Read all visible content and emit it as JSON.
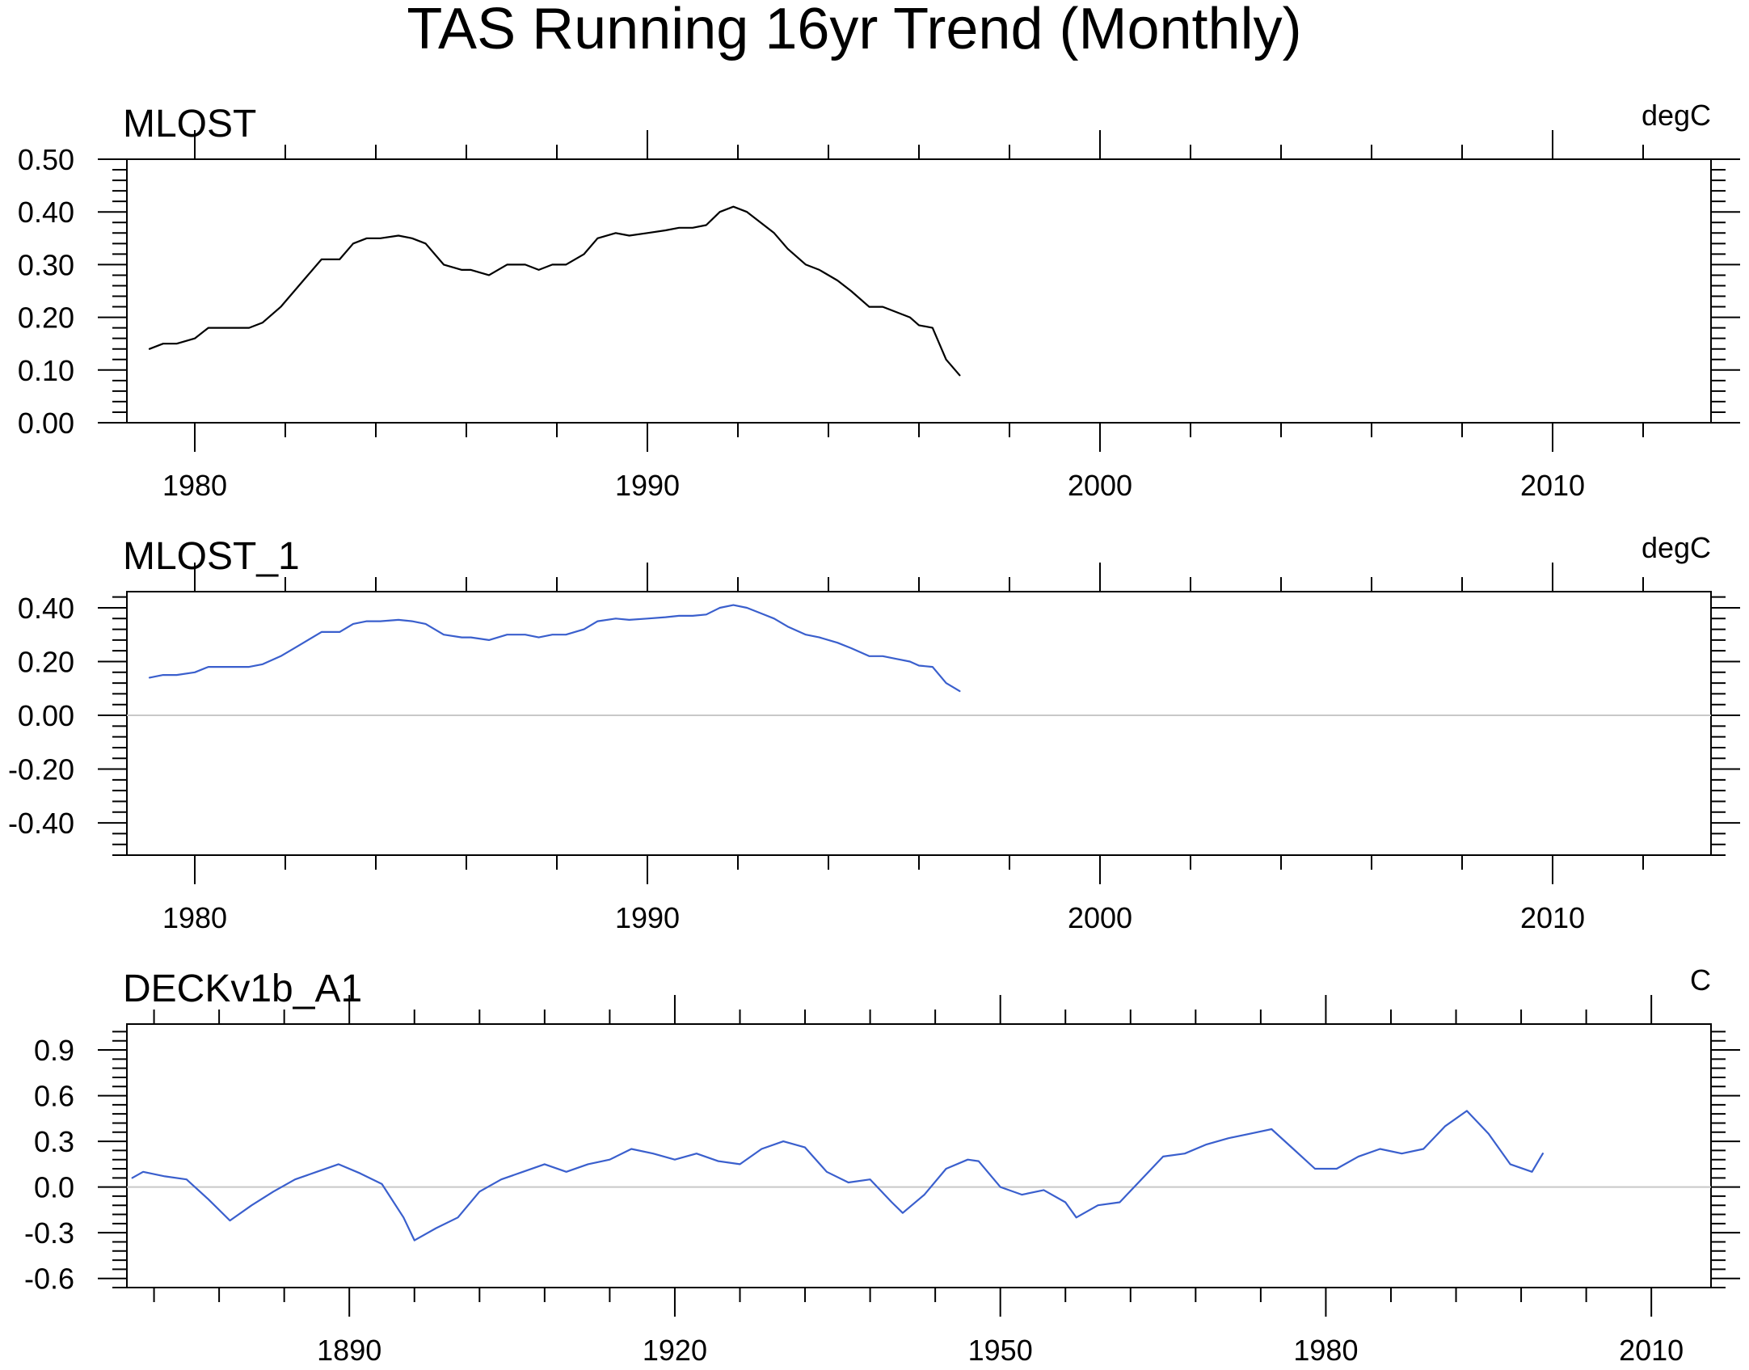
{
  "figure": {
    "title": "TAS Running 16yr Trend (Monthly)"
  },
  "chart_data": [
    {
      "type": "line",
      "title": "MLOST",
      "units": "degC",
      "xlim": [
        1978.5,
        2013.5
      ],
      "ylim": [
        0.0,
        0.5
      ],
      "x_ticks": [
        1980,
        1990,
        2000,
        2010
      ],
      "y_ticks": [
        0.0,
        0.1,
        0.2,
        0.3,
        0.4,
        0.5
      ],
      "y_tick_labels": [
        "0.00",
        "0.10",
        "0.20",
        "0.30",
        "0.40",
        "0.50"
      ],
      "grid": false,
      "zero_line": false,
      "line_color": "#000000",
      "series": [
        {
          "x": [
            1979.0,
            1979.3,
            1979.6,
            1980.0,
            1980.3,
            1980.6,
            1980.9,
            1981.2,
            1981.5,
            1981.9,
            1982.2,
            1982.5,
            1982.8,
            1983.2,
            1983.5,
            1983.8,
            1984.1,
            1984.5,
            1984.8,
            1985.1,
            1985.5,
            1985.9,
            1986.1,
            1986.5,
            1986.9,
            1987.3,
            1987.6,
            1987.9,
            1988.2,
            1988.6,
            1988.9,
            1989.3,
            1989.6,
            1990.0,
            1990.4,
            1990.7,
            1991.0,
            1991.3,
            1991.6,
            1991.9,
            1992.2,
            1992.5,
            1992.8,
            1993.1,
            1993.5,
            1993.8,
            1994.2,
            1994.5,
            1994.9,
            1995.2,
            1995.5,
            1995.8,
            1996.0,
            1996.3,
            1996.6,
            1996.9
          ],
          "y": [
            0.14,
            0.15,
            0.15,
            0.16,
            0.18,
            0.18,
            0.18,
            0.18,
            0.19,
            0.22,
            0.25,
            0.28,
            0.31,
            0.31,
            0.34,
            0.35,
            0.35,
            0.355,
            0.35,
            0.34,
            0.3,
            0.29,
            0.29,
            0.28,
            0.3,
            0.3,
            0.29,
            0.3,
            0.3,
            0.32,
            0.35,
            0.36,
            0.355,
            0.36,
            0.365,
            0.37,
            0.37,
            0.375,
            0.4,
            0.41,
            0.4,
            0.38,
            0.36,
            0.33,
            0.3,
            0.29,
            0.27,
            0.25,
            0.22,
            0.22,
            0.21,
            0.2,
            0.185,
            0.18,
            0.12,
            0.09
          ]
        }
      ]
    },
    {
      "type": "line",
      "title": "MLOST_1",
      "units": "degC",
      "xlim": [
        1978.5,
        2013.5
      ],
      "ylim": [
        -0.52,
        0.46
      ],
      "x_ticks": [
        1980,
        1990,
        2000,
        2010
      ],
      "y_ticks": [
        -0.4,
        -0.2,
        0.0,
        0.2,
        0.4
      ],
      "y_tick_labels": [
        "-0.40",
        "-0.20",
        "0.00",
        "0.20",
        "0.40"
      ],
      "grid": false,
      "zero_line": true,
      "line_color": "#3a5fcd",
      "series": [
        {
          "x": [
            1979.0,
            1979.3,
            1979.6,
            1980.0,
            1980.3,
            1980.6,
            1980.9,
            1981.2,
            1981.5,
            1981.9,
            1982.2,
            1982.5,
            1982.8,
            1983.2,
            1983.5,
            1983.8,
            1984.1,
            1984.5,
            1984.8,
            1985.1,
            1985.5,
            1985.9,
            1986.1,
            1986.5,
            1986.9,
            1987.3,
            1987.6,
            1987.9,
            1988.2,
            1988.6,
            1988.9,
            1989.3,
            1989.6,
            1990.0,
            1990.4,
            1990.7,
            1991.0,
            1991.3,
            1991.6,
            1991.9,
            1992.2,
            1992.5,
            1992.8,
            1993.1,
            1993.5,
            1993.8,
            1994.2,
            1994.5,
            1994.9,
            1995.2,
            1995.5,
            1995.8,
            1996.0,
            1996.3,
            1996.6,
            1996.9
          ],
          "y": [
            0.14,
            0.15,
            0.15,
            0.16,
            0.18,
            0.18,
            0.18,
            0.18,
            0.19,
            0.22,
            0.25,
            0.28,
            0.31,
            0.31,
            0.34,
            0.35,
            0.35,
            0.355,
            0.35,
            0.34,
            0.3,
            0.29,
            0.29,
            0.28,
            0.3,
            0.3,
            0.29,
            0.3,
            0.3,
            0.32,
            0.35,
            0.36,
            0.355,
            0.36,
            0.365,
            0.37,
            0.37,
            0.375,
            0.4,
            0.41,
            0.4,
            0.38,
            0.36,
            0.33,
            0.3,
            0.29,
            0.27,
            0.25,
            0.22,
            0.22,
            0.21,
            0.2,
            0.185,
            0.18,
            0.12,
            0.09
          ]
        }
      ]
    },
    {
      "type": "line",
      "title": "DECKv1b_A1",
      "units": "C",
      "xlim": [
        1869.5,
        2015.5
      ],
      "ylim": [
        -0.66,
        1.07
      ],
      "x_ticks": [
        1890,
        1920,
        1950,
        1980,
        2010
      ],
      "y_ticks": [
        -0.6,
        -0.3,
        0.0,
        0.3,
        0.6,
        0.9
      ],
      "y_tick_labels": [
        "-0.6",
        "-0.3",
        "0.0",
        "0.3",
        "0.6",
        "0.9"
      ],
      "grid": false,
      "zero_line": true,
      "line_color": "#3a5fcd",
      "series": [
        {
          "x": [
            1870,
            1871,
            1873,
            1875,
            1877,
            1879,
            1881,
            1883,
            1885,
            1887,
            1889,
            1891,
            1893,
            1895,
            1896,
            1898,
            1900,
            1902,
            1904,
            1906,
            1908,
            1910,
            1912,
            1914,
            1916,
            1918,
            1920,
            1922,
            1924,
            1926,
            1928,
            1930,
            1932,
            1934,
            1936,
            1938,
            1940,
            1941,
            1943,
            1945,
            1947,
            1948,
            1950,
            1952,
            1954,
            1956,
            1957,
            1959,
            1961,
            1963,
            1965,
            1967,
            1969,
            1971,
            1973,
            1975,
            1977,
            1979,
            1981,
            1983,
            1985,
            1987,
            1989,
            1991,
            1993,
            1995,
            1997,
            1999,
            2000
          ],
          "y": [
            0.06,
            0.1,
            0.07,
            0.05,
            -0.08,
            -0.22,
            -0.12,
            -0.03,
            0.05,
            0.1,
            0.15,
            0.09,
            0.02,
            -0.2,
            -0.35,
            -0.27,
            -0.2,
            -0.03,
            0.05,
            0.1,
            0.15,
            0.1,
            0.15,
            0.18,
            0.25,
            0.22,
            0.18,
            0.22,
            0.17,
            0.15,
            0.25,
            0.3,
            0.26,
            0.1,
            0.03,
            0.05,
            -0.1,
            -0.17,
            -0.05,
            0.12,
            0.18,
            0.17,
            0.0,
            -0.05,
            -0.02,
            -0.1,
            -0.2,
            -0.12,
            -0.1,
            0.05,
            0.2,
            0.22,
            0.28,
            0.32,
            0.35,
            0.38,
            0.25,
            0.12,
            0.12,
            0.2,
            0.25,
            0.22,
            0.25,
            0.4,
            0.5,
            0.35,
            0.15,
            0.1,
            0.22
          ]
        }
      ]
    }
  ]
}
